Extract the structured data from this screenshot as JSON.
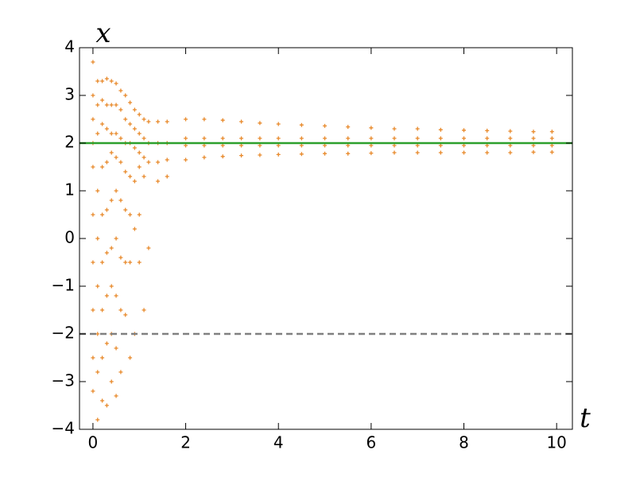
{
  "chart_data": {
    "type": "scatter",
    "xlabel": "t",
    "ylabel": "x",
    "xlim": [
      -0.29,
      10.34
    ],
    "ylim": [
      -4,
      4
    ],
    "xticks": [
      0,
      2,
      4,
      6,
      8,
      10
    ],
    "yticks": [
      {
        "value": -4,
        "label": "−4"
      },
      {
        "value": -3,
        "label": "−3"
      },
      {
        "value": -2,
        "label": "−2"
      },
      {
        "value": -1,
        "label": "−1"
      },
      0,
      1,
      2,
      3,
      4
    ],
    "grid": false,
    "hlines": [
      {
        "y": 2,
        "color": "#2ca02c",
        "style": "solid"
      },
      {
        "y": -2,
        "color": "#808080",
        "style": "dashed"
      }
    ],
    "series": [
      {
        "color": "#e8892a",
        "x": [
          0,
          0,
          0,
          0,
          0,
          0,
          0,
          0,
          0,
          0,
          0.1,
          0.1,
          0.1,
          0.1,
          0.1,
          0.1,
          0.1,
          0.1,
          0.1,
          0.2,
          0.2,
          0.2,
          0.2,
          0.2,
          0.2,
          0.2,
          0.2,
          0.2,
          0.3,
          0.3,
          0.3,
          0.3,
          0.3,
          0.3,
          0.3,
          0.3,
          0.3,
          0.4,
          0.4,
          0.4,
          0.4,
          0.4,
          0.4,
          0.4,
          0.4,
          0.4,
          0.5,
          0.5,
          0.5,
          0.5,
          0.5,
          0.5,
          0.5,
          0.5,
          0.5,
          0.6,
          0.6,
          0.6,
          0.6,
          0.6,
          0.6,
          0.6,
          0.6,
          0.7,
          0.7,
          0.7,
          0.7,
          0.7,
          0.7,
          0.7,
          0.8,
          0.8,
          0.8,
          0.8,
          0.8,
          0.8,
          0.8,
          0.9,
          0.9,
          0.9,
          0.9,
          0.9,
          0.9,
          1.0,
          1.0,
          1.0,
          1.0,
          1.0,
          1.0,
          1.1,
          1.1,
          1.1,
          1.1,
          1.1,
          1.2,
          1.2,
          1.2,
          1.2,
          1.4,
          1.4,
          1.4,
          1.4,
          1.6,
          1.6,
          1.6,
          1.6,
          2.0,
          2.0,
          2.0,
          2.0,
          2.4,
          2.4,
          2.4,
          2.4,
          2.8,
          2.8,
          2.8,
          2.8,
          3.2,
          3.2,
          3.2,
          3.2,
          3.6,
          3.6,
          3.6,
          3.6,
          4.0,
          4.0,
          4.0,
          4.0,
          4.5,
          4.5,
          4.5,
          4.5,
          5.0,
          5.0,
          5.0,
          5.0,
          5.5,
          5.5,
          5.5,
          5.5,
          6.0,
          6.0,
          6.0,
          6.0,
          6.5,
          6.5,
          6.5,
          6.5,
          7.0,
          7.0,
          7.0,
          7.0,
          7.5,
          7.5,
          7.5,
          7.5,
          8.0,
          8.0,
          8.0,
          8.0,
          8.5,
          8.5,
          8.5,
          8.5,
          9.0,
          9.0,
          9.0,
          9.0,
          9.5,
          9.5,
          9.5,
          9.5,
          9.9,
          9.9,
          9.9,
          9.9
        ],
        "values": [
          3.7,
          3.0,
          2.5,
          2.0,
          1.5,
          0.5,
          -0.5,
          -1.5,
          -2.5,
          -3.2,
          3.3,
          2.8,
          2.2,
          1.0,
          0,
          -1,
          -2,
          -2.8,
          -3.8,
          3.3,
          2.9,
          2.4,
          1.5,
          0.5,
          -0.5,
          -1.5,
          -2.5,
          -3.4,
          3.35,
          2.8,
          2.3,
          1.6,
          0.6,
          -0.3,
          -1.2,
          -2.2,
          -3.5,
          3.3,
          2.8,
          2.2,
          1.8,
          0.8,
          -0.2,
          -1.0,
          -2.0,
          -3.0,
          3.25,
          2.8,
          2.2,
          1.7,
          1.0,
          0,
          -1.2,
          -2.3,
          -3.3,
          3.1,
          2.7,
          2.1,
          1.6,
          0.8,
          -0.4,
          -1.5,
          -2.8,
          3.0,
          2.5,
          2.0,
          1.4,
          0.6,
          -0.5,
          -1.6,
          2.85,
          2.4,
          2.0,
          1.3,
          0.5,
          -0.5,
          -2.5,
          2.7,
          2.3,
          1.9,
          1.2,
          0.2,
          -2.0,
          2.6,
          2.2,
          1.8,
          1.5,
          0.5,
          -0.5,
          2.5,
          2.1,
          1.7,
          1.3,
          -1.5,
          2.45,
          2.0,
          1.6,
          -0.2,
          2.45,
          2.0,
          1.6,
          1.2,
          2.45,
          2.0,
          1.65,
          1.3,
          2.5,
          2.1,
          1.95,
          1.65,
          2.5,
          2.1,
          1.95,
          1.7,
          2.48,
          2.1,
          1.95,
          1.72,
          2.45,
          2.1,
          1.95,
          1.74,
          2.42,
          2.1,
          1.95,
          1.75,
          2.4,
          2.1,
          1.95,
          1.76,
          2.38,
          2.1,
          1.95,
          1.77,
          2.36,
          2.1,
          1.95,
          1.78,
          2.34,
          2.1,
          1.95,
          1.78,
          2.32,
          2.1,
          1.95,
          1.79,
          2.3,
          2.1,
          1.95,
          1.8,
          2.3,
          2.1,
          1.95,
          1.8,
          2.28,
          2.1,
          1.95,
          1.8,
          2.27,
          2.1,
          1.95,
          1.8,
          2.26,
          2.1,
          1.95,
          1.8,
          2.25,
          2.1,
          1.95,
          1.8,
          2.24,
          2.1,
          1.95,
          1.81,
          2.24,
          2.1,
          1.95,
          1.81
        ]
      }
    ]
  }
}
